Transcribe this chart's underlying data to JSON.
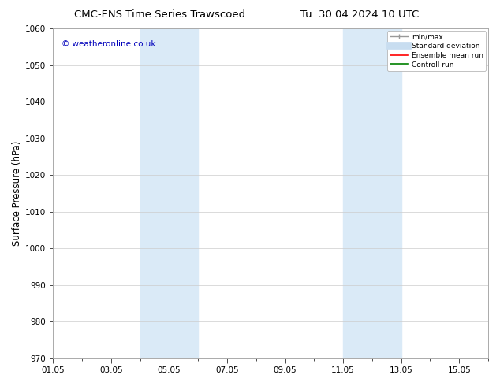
{
  "title": "CMC-ENS Time Series Trawscoed",
  "title2": "Tu. 30.04.2024 10 UTC",
  "ylabel": "Surface Pressure (hPa)",
  "ylim": [
    970,
    1060
  ],
  "yticks": [
    970,
    980,
    990,
    1000,
    1010,
    1020,
    1030,
    1040,
    1050,
    1060
  ],
  "xtick_labels": [
    "01.05",
    "03.05",
    "05.05",
    "07.05",
    "09.05",
    "11.05",
    "13.05",
    "15.05"
  ],
  "xtick_days": [
    1,
    3,
    5,
    7,
    9,
    11,
    13,
    15
  ],
  "xlim": [
    1,
    16
  ],
  "shaded_regions": [
    {
      "start_day": 4.0,
      "end_day": 6.0
    },
    {
      "start_day": 11.0,
      "end_day": 13.0
    }
  ],
  "shaded_color": "#daeaf7",
  "watermark_text": "© weatheronline.co.uk",
  "watermark_color": "#0000bb",
  "watermark_fontsize": 7.5,
  "legend_labels": [
    "min/max",
    "Standard deviation",
    "Ensemble mean run",
    "Controll run"
  ],
  "legend_colors": [
    "#999999",
    "#c8ddf0",
    "#ff0000",
    "#008000"
  ],
  "bg_color": "#ffffff",
  "grid_color": "#cccccc",
  "tick_label_fontsize": 7.5,
  "axis_label_fontsize": 8.5,
  "title_fontsize": 9.5
}
